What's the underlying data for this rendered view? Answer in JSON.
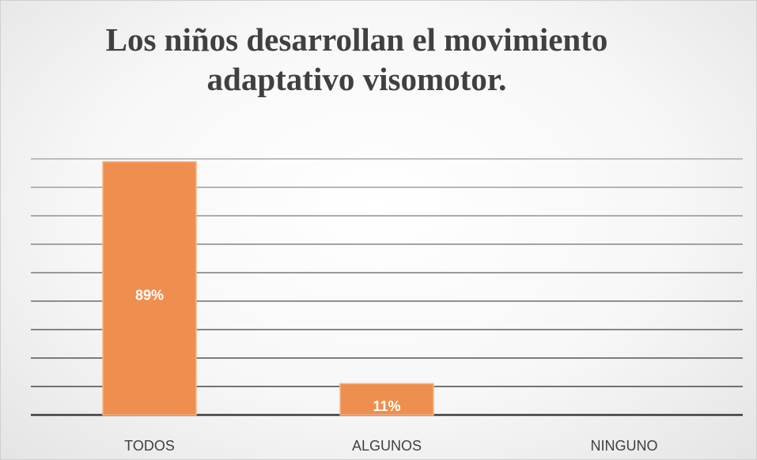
{
  "chart_data": {
    "type": "bar",
    "title": "Los niños desarrollan el movimiento adaptativo visomotor.",
    "categories": [
      "TODOS",
      "ALGUNOS",
      "NINGUNO"
    ],
    "values": [
      89,
      11,
      0
    ],
    "value_labels": [
      "89%",
      "11%",
      null
    ],
    "color": "#ef8f4f",
    "ylim": [
      0,
      90
    ],
    "yticks": [
      0,
      10,
      20,
      30,
      40,
      50,
      60,
      70,
      80,
      90
    ],
    "grid": true
  }
}
